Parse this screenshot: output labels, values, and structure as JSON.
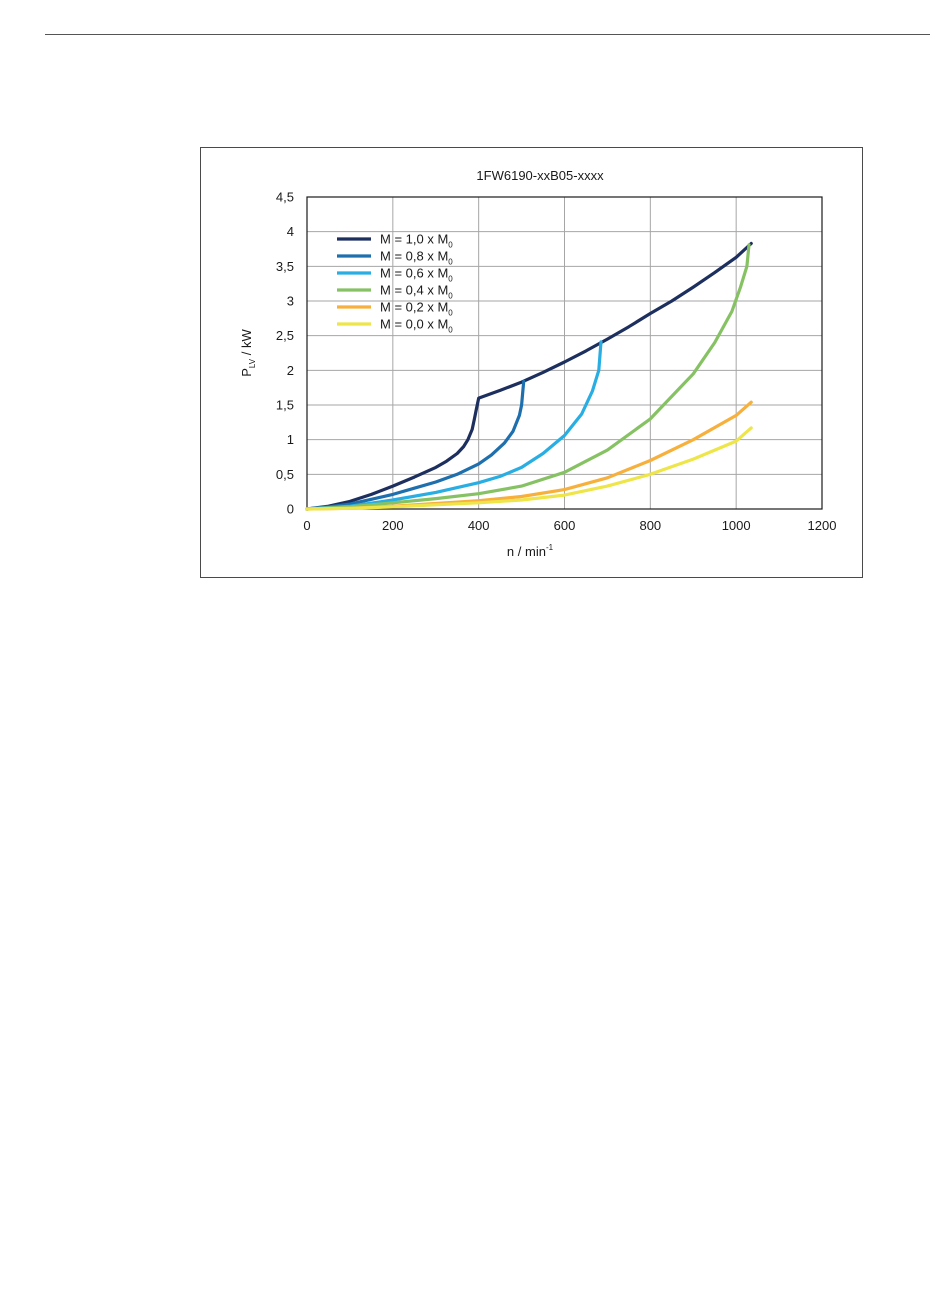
{
  "chart_data": {
    "type": "line",
    "title": "1FW6190-xxB05-xxxx",
    "xlabel": {
      "main": "n / min",
      "sup": "-1"
    },
    "ylabel": {
      "main": "P",
      "sub": "LV",
      "rest": " / kW"
    },
    "xlim": [
      0,
      1200
    ],
    "ylim": [
      0,
      4.5
    ],
    "xticks": [
      0,
      200,
      400,
      600,
      800,
      1000,
      1200
    ],
    "yticks": [
      0,
      0.5,
      1,
      1.5,
      2,
      2.5,
      3,
      3.5,
      4,
      4.5
    ],
    "xtick_labels": [
      "0",
      "200",
      "400",
      "600",
      "800",
      "1000",
      "1200"
    ],
    "ytick_labels": [
      "0",
      "0,5",
      "1",
      "1,5",
      "2",
      "2,5",
      "3",
      "3,5",
      "4",
      "4,5"
    ],
    "grid": true,
    "legend_position": "top-left",
    "series": [
      {
        "name": "M = 1,0 x M",
        "name_sub": "0",
        "color": "#1c2f5e",
        "points": [
          [
            0,
            0
          ],
          [
            50,
            0.04
          ],
          [
            100,
            0.11
          ],
          [
            150,
            0.21
          ],
          [
            200,
            0.33
          ],
          [
            250,
            0.46
          ],
          [
            300,
            0.6
          ],
          [
            325,
            0.69
          ],
          [
            350,
            0.8
          ],
          [
            365,
            0.9
          ],
          [
            375,
            1.0
          ],
          [
            385,
            1.15
          ],
          [
            390,
            1.3
          ],
          [
            395,
            1.45
          ],
          [
            400,
            1.6
          ],
          [
            450,
            1.71
          ],
          [
            500,
            1.83
          ],
          [
            550,
            1.97
          ],
          [
            600,
            2.12
          ],
          [
            650,
            2.28
          ],
          [
            700,
            2.45
          ],
          [
            750,
            2.63
          ],
          [
            800,
            2.82
          ],
          [
            850,
            3.0
          ],
          [
            900,
            3.2
          ],
          [
            950,
            3.41
          ],
          [
            1000,
            3.63
          ],
          [
            1035,
            3.83
          ]
        ]
      },
      {
        "name": "M = 0,8 x M",
        "name_sub": "0",
        "color": "#1d6fad",
        "points": [
          [
            0,
            0
          ],
          [
            50,
            0.03
          ],
          [
            100,
            0.07
          ],
          [
            150,
            0.14
          ],
          [
            200,
            0.21
          ],
          [
            250,
            0.3
          ],
          [
            300,
            0.39
          ],
          [
            350,
            0.5
          ],
          [
            400,
            0.65
          ],
          [
            430,
            0.78
          ],
          [
            460,
            0.95
          ],
          [
            480,
            1.12
          ],
          [
            495,
            1.35
          ],
          [
            500,
            1.5
          ],
          [
            505,
            1.84
          ]
        ]
      },
      {
        "name": "M = 0,6 x M",
        "name_sub": "0",
        "color": "#29aee3",
        "points": [
          [
            0,
            0
          ],
          [
            100,
            0.04
          ],
          [
            200,
            0.13
          ],
          [
            300,
            0.24
          ],
          [
            400,
            0.38
          ],
          [
            450,
            0.47
          ],
          [
            500,
            0.6
          ],
          [
            550,
            0.8
          ],
          [
            600,
            1.06
          ],
          [
            640,
            1.37
          ],
          [
            665,
            1.7
          ],
          [
            680,
            2.0
          ],
          [
            685,
            2.41
          ]
        ]
      },
      {
        "name": "M = 0,4 x M",
        "name_sub": "0",
        "color": "#86c263",
        "points": [
          [
            0,
            0
          ],
          [
            100,
            0.03
          ],
          [
            200,
            0.09
          ],
          [
            300,
            0.15
          ],
          [
            400,
            0.22
          ],
          [
            500,
            0.33
          ],
          [
            600,
            0.53
          ],
          [
            700,
            0.85
          ],
          [
            800,
            1.3
          ],
          [
            900,
            1.95
          ],
          [
            950,
            2.4
          ],
          [
            990,
            2.85
          ],
          [
            1010,
            3.2
          ],
          [
            1025,
            3.5
          ],
          [
            1030,
            3.81
          ]
        ]
      },
      {
        "name": "M = 0,2 x M",
        "name_sub": "0",
        "color": "#f7b03b",
        "points": [
          [
            0,
            0
          ],
          [
            100,
            0.01
          ],
          [
            200,
            0.04
          ],
          [
            300,
            0.08
          ],
          [
            400,
            0.12
          ],
          [
            500,
            0.18
          ],
          [
            600,
            0.28
          ],
          [
            700,
            0.45
          ],
          [
            800,
            0.7
          ],
          [
            900,
            1.0
          ],
          [
            1000,
            1.35
          ],
          [
            1035,
            1.54
          ]
        ]
      },
      {
        "name": "M = 0,0 x M",
        "name_sub": "0",
        "color": "#eee549",
        "points": [
          [
            0,
            0
          ],
          [
            100,
            0.01
          ],
          [
            200,
            0.03
          ],
          [
            300,
            0.06
          ],
          [
            400,
            0.09
          ],
          [
            500,
            0.13
          ],
          [
            600,
            0.2
          ],
          [
            700,
            0.33
          ],
          [
            800,
            0.5
          ],
          [
            900,
            0.72
          ],
          [
            1000,
            0.98
          ],
          [
            1035,
            1.17
          ]
        ]
      }
    ]
  }
}
